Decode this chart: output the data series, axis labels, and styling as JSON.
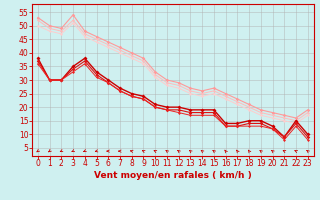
{
  "background_color": "#cff0f0",
  "grid_color": "#b0b0b0",
  "xlabel": "Vent moyen/en rafales ( km/h )",
  "xlabel_color": "#cc0000",
  "xlabel_fontsize": 6.5,
  "tick_color": "#cc0000",
  "tick_fontsize": 5.5,
  "xlim": [
    -0.5,
    23.5
  ],
  "ylim": [
    2,
    58
  ],
  "yticks": [
    5,
    10,
    15,
    20,
    25,
    30,
    35,
    40,
    45,
    50,
    55
  ],
  "xticks": [
    0,
    1,
    2,
    3,
    4,
    5,
    6,
    7,
    8,
    9,
    10,
    11,
    12,
    13,
    14,
    15,
    16,
    17,
    18,
    19,
    20,
    21,
    22,
    23
  ],
  "lines_light": [
    {
      "x": [
        0,
        1,
        2,
        3,
        4,
        5,
        6,
        7,
        8,
        9,
        10,
        11,
        12,
        13,
        14,
        15,
        16,
        17,
        18,
        19,
        20,
        21,
        22,
        23
      ],
      "y": [
        53,
        50,
        49,
        54,
        48,
        46,
        44,
        42,
        40,
        38,
        33,
        30,
        29,
        27,
        26,
        27,
        25,
        23,
        21,
        19,
        18,
        17,
        16,
        19
      ],
      "color": "#ff9999",
      "lw": 0.8,
      "marker": "D",
      "ms": 1.8
    },
    {
      "x": [
        0,
        1,
        2,
        3,
        4,
        5,
        6,
        7,
        8,
        9,
        10,
        11,
        12,
        13,
        14,
        15,
        16,
        17,
        18,
        19,
        20,
        21,
        22,
        23
      ],
      "y": [
        52,
        49,
        48,
        52,
        47,
        45,
        43,
        41,
        39,
        37,
        32,
        29,
        28,
        26,
        25,
        26,
        24,
        22,
        20,
        18,
        17,
        16,
        15,
        18
      ],
      "color": "#ffbbbb",
      "lw": 0.7,
      "marker": "D",
      "ms": 1.5
    },
    {
      "x": [
        0,
        1,
        2,
        3,
        4,
        5,
        6,
        7,
        8,
        9,
        10,
        11,
        12,
        13,
        14,
        15,
        16,
        17,
        18,
        19,
        20,
        21,
        22,
        23
      ],
      "y": [
        50,
        48,
        47,
        51,
        46,
        44,
        42,
        40,
        38,
        36,
        31,
        28,
        27,
        25,
        24,
        25,
        23,
        21,
        19,
        17,
        16,
        15,
        14,
        17
      ],
      "color": "#ffcccc",
      "lw": 0.7,
      "marker": "D",
      "ms": 1.5
    }
  ],
  "lines_dark": [
    {
      "x": [
        0,
        1,
        2,
        3,
        4,
        5,
        6,
        7,
        8,
        9,
        10,
        11,
        12,
        13,
        14,
        15,
        16,
        17,
        18,
        19,
        20,
        21,
        22,
        23
      ],
      "y": [
        38,
        30,
        30,
        35,
        38,
        33,
        30,
        27,
        25,
        24,
        21,
        20,
        20,
        19,
        19,
        19,
        14,
        14,
        15,
        15,
        13,
        9,
        15,
        10
      ],
      "color": "#cc0000",
      "lw": 1.0,
      "marker": "D",
      "ms": 2.0
    },
    {
      "x": [
        0,
        1,
        2,
        3,
        4,
        5,
        6,
        7,
        8,
        9,
        10,
        11,
        12,
        13,
        14,
        15,
        16,
        17,
        18,
        19,
        20,
        21,
        22,
        23
      ],
      "y": [
        37,
        30,
        30,
        34,
        37,
        32,
        29,
        26,
        24,
        23,
        20,
        19,
        19,
        18,
        18,
        18,
        13,
        13,
        14,
        14,
        12,
        9,
        14,
        9
      ],
      "color": "#dd1111",
      "lw": 0.8,
      "marker": "D",
      "ms": 1.8
    },
    {
      "x": [
        0,
        1,
        2,
        3,
        4,
        5,
        6,
        7,
        8,
        9,
        10,
        11,
        12,
        13,
        14,
        15,
        16,
        17,
        18,
        19,
        20,
        21,
        22,
        23
      ],
      "y": [
        36,
        30,
        30,
        33,
        36,
        31,
        29,
        26,
        24,
        23,
        20,
        19,
        18,
        17,
        17,
        17,
        13,
        13,
        13,
        13,
        12,
        8,
        13,
        8
      ],
      "color": "#ee2222",
      "lw": 0.7,
      "marker": "D",
      "ms": 1.5
    }
  ],
  "wind_x": [
    0,
    1,
    2,
    3,
    4,
    5,
    6,
    7,
    8,
    9,
    10,
    11,
    12,
    13,
    14,
    15,
    16,
    17,
    18,
    19,
    20,
    21,
    22,
    23
  ],
  "wind_angles_deg": [
    225,
    225,
    210,
    210,
    210,
    195,
    180,
    180,
    165,
    150,
    150,
    135,
    135,
    135,
    135,
    135,
    120,
    120,
    120,
    135,
    135,
    150,
    150,
    135
  ]
}
